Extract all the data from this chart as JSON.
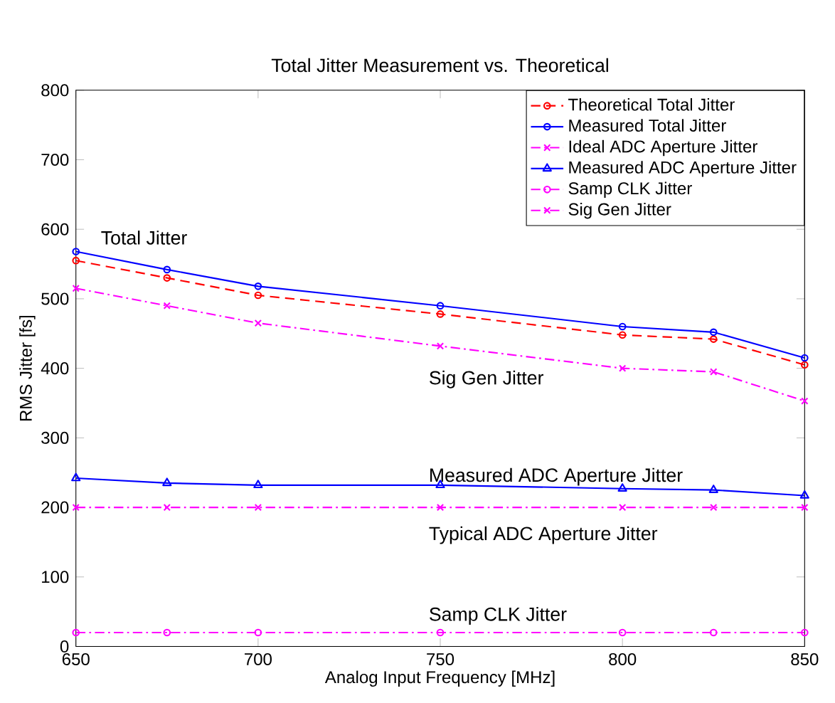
{
  "chart_data": {
    "type": "line",
    "title": "Total Jitter Measurement vs. Theoretical",
    "xlabel": "Analog Input Frequency [MHz]",
    "ylabel": "RMS Jitter [fs]",
    "x": [
      650,
      675,
      700,
      750,
      800,
      825,
      850
    ],
    "xlim": [
      650,
      850
    ],
    "xticks": [
      650,
      700,
      750,
      800,
      850
    ],
    "ylim": [
      0,
      800
    ],
    "yticks": [
      0,
      100,
      200,
      300,
      400,
      500,
      600,
      700,
      800
    ],
    "grid": false,
    "legend": "top right",
    "series": [
      {
        "name": "Theoretical Total Jitter",
        "color": "#ff0000",
        "marker": "circle",
        "line_style": "dashed",
        "values": [
          555,
          530,
          505,
          478,
          448,
          442,
          405
        ]
      },
      {
        "name": "Measured Total Jitter",
        "color": "#0000ff",
        "marker": "circle",
        "line_style": "solid",
        "values": [
          568,
          542,
          518,
          490,
          460,
          452,
          415
        ]
      },
      {
        "name": "Ideal ADC Aperture Jitter",
        "color": "#ff00ff",
        "marker": "cross",
        "line_style": "dashdot",
        "values": [
          200,
          200,
          200,
          200,
          200,
          200,
          200
        ]
      },
      {
        "name": "Measured ADC Aperture Jitter",
        "color": "#0000ff",
        "marker": "triangle",
        "line_style": "solid",
        "values": [
          242,
          235,
          232,
          232,
          227,
          225,
          217
        ]
      },
      {
        "name": "Samp CLK Jitter",
        "color": "#ff00ff",
        "marker": "circle",
        "line_style": "dashdot",
        "values": [
          20,
          20,
          20,
          20,
          20,
          20,
          20
        ]
      },
      {
        "name": "Sig Gen Jitter",
        "color": "#ff00ff",
        "marker": "cross",
        "line_style": "dashdot",
        "values": [
          515,
          490,
          465,
          432,
          400,
          395,
          353
        ]
      }
    ],
    "annotations": [
      "Total Jitter",
      "Sig Gen Jitter",
      "Measured ADC Aperture Jitter",
      "Typical ADC Aperture Jitter",
      "Samp CLK Jitter"
    ]
  }
}
